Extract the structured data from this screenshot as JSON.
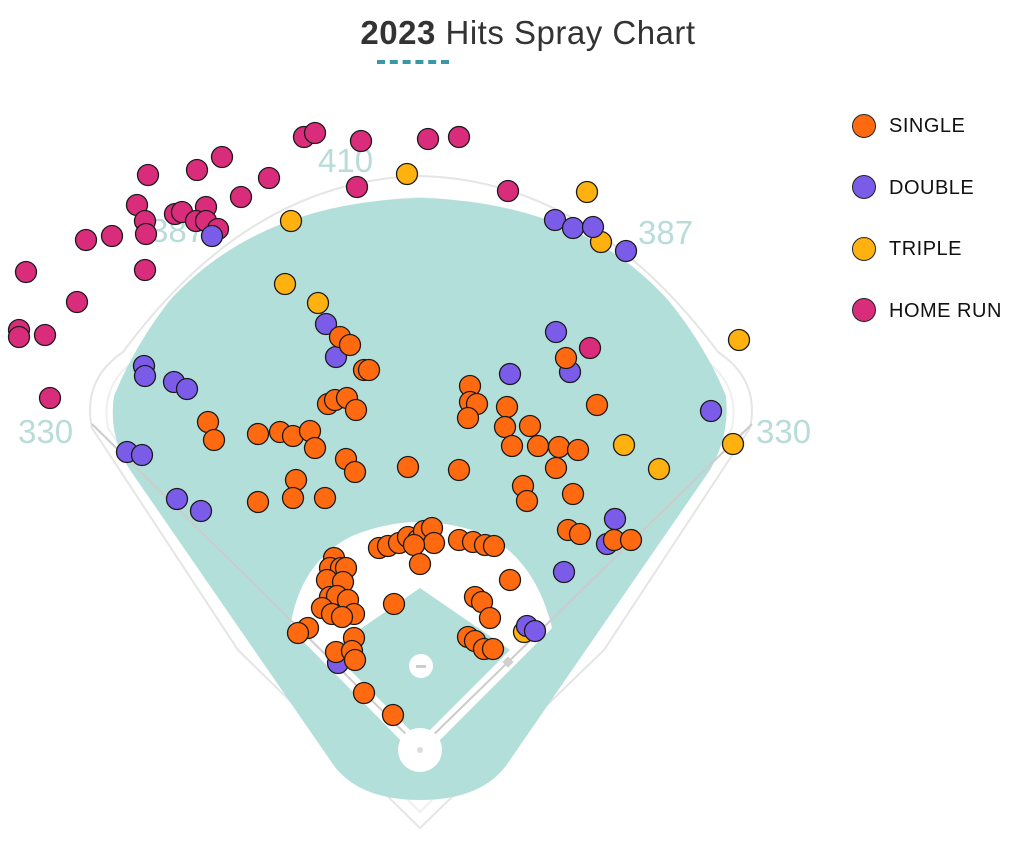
{
  "title": {
    "year": "2023",
    "rest": "Hits Spray Chart"
  },
  "legend": [
    {
      "label": "SINGLE",
      "color": "#ff6a10"
    },
    {
      "label": "DOUBLE",
      "color": "#7b5ce8"
    },
    {
      "label": "TRIPLE",
      "color": "#ffb20f"
    },
    {
      "label": "HOME RUN",
      "color": "#d92c7a"
    }
  ],
  "distances": {
    "left_line": "330",
    "left_center": "387",
    "center": "410",
    "right_center": "387",
    "right_line": "330"
  },
  "chart_data": {
    "type": "scatter",
    "title": "2023 Hits Spray Chart",
    "series": [
      {
        "name": "SINGLE",
        "color": "#ff6a10",
        "points": [
          [
            340,
            337
          ],
          [
            350,
            345
          ],
          [
            364,
            370
          ],
          [
            369,
            370
          ],
          [
            328,
            404
          ],
          [
            335,
            400
          ],
          [
            347,
            398
          ],
          [
            356,
            410
          ],
          [
            208,
            422
          ],
          [
            214,
            440
          ],
          [
            258,
            434
          ],
          [
            280,
            432
          ],
          [
            293,
            436
          ],
          [
            310,
            431
          ],
          [
            315,
            448
          ],
          [
            346,
            459
          ],
          [
            355,
            472
          ],
          [
            296,
            480
          ],
          [
            293,
            498
          ],
          [
            325,
            498
          ],
          [
            258,
            502
          ],
          [
            408,
            467
          ],
          [
            459,
            470
          ],
          [
            470,
            386
          ],
          [
            470,
            402
          ],
          [
            477,
            404
          ],
          [
            468,
            418
          ],
          [
            507,
            407
          ],
          [
            505,
            427
          ],
          [
            530,
            426
          ],
          [
            512,
            446
          ],
          [
            538,
            446
          ],
          [
            559,
            447
          ],
          [
            578,
            450
          ],
          [
            556,
            468
          ],
          [
            597,
            405
          ],
          [
            523,
            486
          ],
          [
            527,
            501
          ],
          [
            573,
            494
          ],
          [
            568,
            530
          ],
          [
            580,
            534
          ],
          [
            614,
            540
          ],
          [
            631,
            540
          ],
          [
            566,
            358
          ],
          [
            510,
            580
          ],
          [
            379,
            548
          ],
          [
            388,
            546
          ],
          [
            399,
            543
          ],
          [
            408,
            537
          ],
          [
            418,
            540
          ],
          [
            424,
            531
          ],
          [
            432,
            528
          ],
          [
            434,
            543
          ],
          [
            414,
            545
          ],
          [
            459,
            540
          ],
          [
            473,
            542
          ],
          [
            485,
            545
          ],
          [
            494,
            546
          ],
          [
            420,
            564
          ],
          [
            334,
            558
          ],
          [
            330,
            568
          ],
          [
            341,
            568
          ],
          [
            346,
            568
          ],
          [
            327,
            580
          ],
          [
            343,
            582
          ],
          [
            330,
            597
          ],
          [
            337,
            596
          ],
          [
            348,
            600
          ],
          [
            322,
            608
          ],
          [
            332,
            614
          ],
          [
            354,
            614
          ],
          [
            342,
            617
          ],
          [
            308,
            628
          ],
          [
            298,
            633
          ],
          [
            354,
            638
          ],
          [
            336,
            652
          ],
          [
            352,
            651
          ],
          [
            355,
            660
          ],
          [
            394,
            604
          ],
          [
            475,
            597
          ],
          [
            482,
            602
          ],
          [
            490,
            618
          ],
          [
            468,
            637
          ],
          [
            475,
            641
          ],
          [
            484,
            649
          ],
          [
            493,
            649
          ],
          [
            364,
            693
          ],
          [
            393,
            715
          ]
        ]
      },
      {
        "name": "DOUBLE",
        "color": "#7b5ce8",
        "points": [
          [
            212,
            236
          ],
          [
            555,
            220
          ],
          [
            573,
            228
          ],
          [
            593,
            227
          ],
          [
            626,
            251
          ],
          [
            556,
            332
          ],
          [
            570,
            372
          ],
          [
            510,
            374
          ],
          [
            326,
            324
          ],
          [
            336,
            357
          ],
          [
            144,
            366
          ],
          [
            145,
            376
          ],
          [
            174,
            382
          ],
          [
            187,
            389
          ],
          [
            127,
            452
          ],
          [
            142,
            455
          ],
          [
            177,
            499
          ],
          [
            201,
            511
          ],
          [
            711,
            411
          ],
          [
            615,
            519
          ],
          [
            607,
            544
          ],
          [
            564,
            572
          ],
          [
            527,
            626
          ],
          [
            535,
            631
          ],
          [
            332,
            609
          ],
          [
            338,
            663
          ]
        ]
      },
      {
        "name": "TRIPLE",
        "color": "#ffb20f",
        "points": [
          [
            407,
            174
          ],
          [
            587,
            192
          ],
          [
            601,
            242
          ],
          [
            291,
            221
          ],
          [
            285,
            284
          ],
          [
            318,
            303
          ],
          [
            739,
            340
          ],
          [
            624,
            445
          ],
          [
            659,
            469
          ],
          [
            733,
            444
          ],
          [
            524,
            632
          ]
        ]
      },
      {
        "name": "HOME RUN",
        "color": "#d92c7a",
        "points": [
          [
            304,
            137
          ],
          [
            315,
            133
          ],
          [
            361,
            141
          ],
          [
            428,
            139
          ],
          [
            459,
            137
          ],
          [
            357,
            187
          ],
          [
            508,
            191
          ],
          [
            222,
            157
          ],
          [
            197,
            170
          ],
          [
            148,
            175
          ],
          [
            269,
            178
          ],
          [
            241,
            197
          ],
          [
            137,
            205
          ],
          [
            175,
            214
          ],
          [
            182,
            212
          ],
          [
            206,
            207
          ],
          [
            196,
            221
          ],
          [
            206,
            221
          ],
          [
            218,
            229
          ],
          [
            145,
            221
          ],
          [
            146,
            234
          ],
          [
            112,
            236
          ],
          [
            86,
            240
          ],
          [
            145,
            270
          ],
          [
            26,
            272
          ],
          [
            77,
            302
          ],
          [
            19,
            330
          ],
          [
            19,
            337
          ],
          [
            45,
            335
          ],
          [
            50,
            398
          ],
          [
            590,
            348
          ]
        ]
      }
    ]
  }
}
